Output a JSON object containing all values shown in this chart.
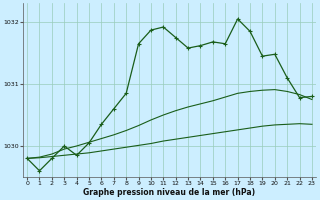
{
  "title": "Graphe pression niveau de la mer (hPa)",
  "x_hours": [
    0,
    1,
    2,
    3,
    4,
    5,
    6,
    7,
    8,
    9,
    10,
    11,
    12,
    13,
    14,
    15,
    16,
    17,
    18,
    19,
    20,
    21,
    22,
    23
  ],
  "jagged": [
    1029.8,
    1029.6,
    1029.8,
    1030.0,
    1029.85,
    1030.05,
    1030.35,
    1030.6,
    1030.85,
    1031.65,
    1031.87,
    1031.92,
    1031.75,
    1031.58,
    1031.62,
    1031.68,
    1031.65,
    1032.05,
    1031.85,
    1031.45,
    1031.48,
    1031.1,
    1030.78,
    1030.8
  ],
  "smooth1": [
    1029.8,
    1029.82,
    1029.87,
    1029.95,
    1030.0,
    1030.06,
    1030.12,
    1030.18,
    1030.25,
    1030.33,
    1030.42,
    1030.5,
    1030.57,
    1030.63,
    1030.68,
    1030.73,
    1030.79,
    1030.85,
    1030.88,
    1030.9,
    1030.91,
    1030.88,
    1030.83,
    1030.75
  ],
  "smooth2": [
    1029.8,
    1029.81,
    1029.83,
    1029.85,
    1029.87,
    1029.89,
    1029.92,
    1029.95,
    1029.98,
    1030.01,
    1030.04,
    1030.08,
    1030.11,
    1030.14,
    1030.17,
    1030.2,
    1030.23,
    1030.26,
    1030.29,
    1030.32,
    1030.34,
    1030.35,
    1030.36,
    1030.35
  ],
  "bg_color": "#cceeff",
  "grid_color": "#99ccbb",
  "line_dark_color": "#1a5e1a",
  "ylim": [
    1029.5,
    1032.3
  ],
  "yticks": [
    1030,
    1031,
    1032
  ],
  "xticks": [
    0,
    1,
    2,
    3,
    4,
    5,
    6,
    7,
    8,
    9,
    10,
    11,
    12,
    13,
    14,
    15,
    16,
    17,
    18,
    19,
    20,
    21,
    22,
    23
  ]
}
